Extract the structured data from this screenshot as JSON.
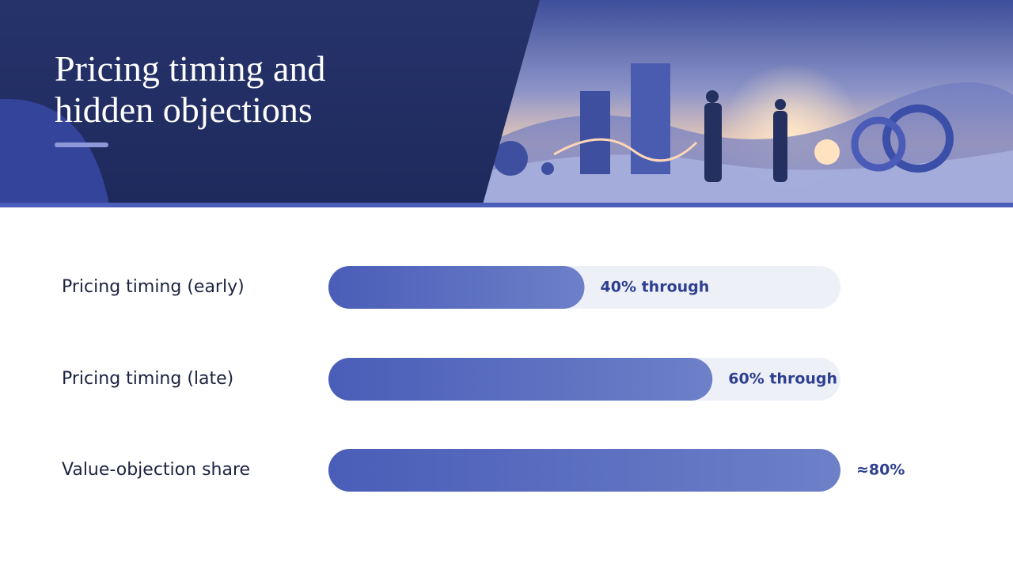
{
  "chart_data": {
    "type": "bar",
    "orientation": "horizontal",
    "title": "Pricing timing and hidden objections",
    "categories": [
      "Pricing timing (early)",
      "Pricing timing (late)",
      "Value-objection share"
    ],
    "values": [
      40,
      60,
      80
    ],
    "value_labels": [
      "40% through",
      "60% through",
      "≈80%"
    ],
    "color": "#4a5db8",
    "xlim": [
      0,
      80
    ]
  }
}
